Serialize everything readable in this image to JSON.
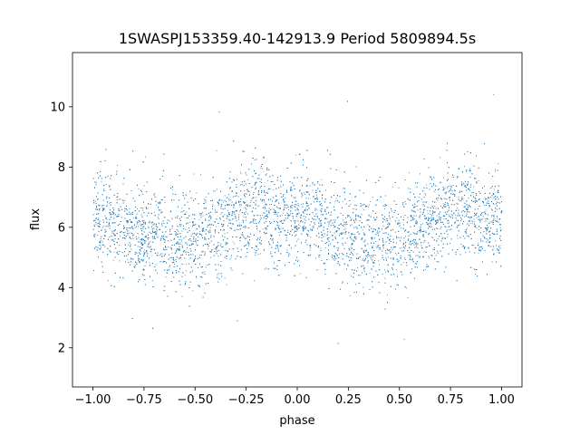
{
  "chart_data": {
    "type": "scatter",
    "title": "1SWASPJ153359.40-142913.9 Period 5809894.5s",
    "xlabel": "phase",
    "ylabel": "flux",
    "xlim": [
      -1.1,
      1.1
    ],
    "ylim": [
      0.7,
      11.8
    ],
    "xticks": [
      -1.0,
      -0.75,
      -0.5,
      -0.25,
      0.0,
      0.25,
      0.5,
      0.75,
      1.0
    ],
    "xtick_labels": [
      "−1.00",
      "−0.75",
      "−0.50",
      "−0.25",
      "0.00",
      "0.25",
      "0.50",
      "0.75",
      "1.00"
    ],
    "yticks": [
      2,
      4,
      6,
      8,
      10
    ],
    "ytick_labels": [
      "2",
      "4",
      "6",
      "8",
      "10"
    ],
    "grid": false,
    "marker_color": "#1f77b4",
    "x_range": [
      -1.0,
      1.0
    ],
    "y_typical_range": [
      4.5,
      8.0
    ],
    "y_extreme_range": [
      1.2,
      11.3
    ],
    "profile": {
      "phase": [
        -1.0,
        -0.9,
        -0.8,
        -0.7,
        -0.6,
        -0.5,
        -0.4,
        -0.3,
        -0.2,
        -0.1,
        0.0,
        0.1,
        0.2,
        0.3,
        0.4,
        0.5,
        0.6,
        0.7,
        0.8,
        0.9,
        1.0
      ],
      "median_flux": [
        6.4,
        6.1,
        5.9,
        5.8,
        5.7,
        5.6,
        5.9,
        6.4,
        6.8,
        6.1,
        6.5,
        6.2,
        5.9,
        5.7,
        5.6,
        5.7,
        6.0,
        6.4,
        6.8,
        6.1,
        6.4
      ]
    }
  }
}
